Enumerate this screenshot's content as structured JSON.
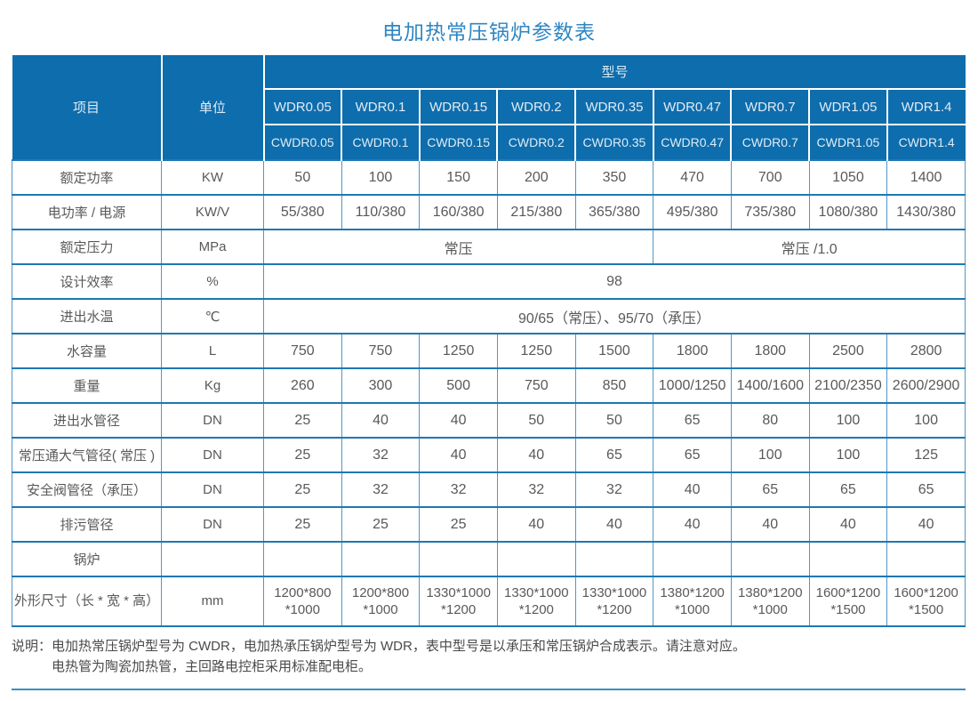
{
  "page_title": "电加热常压锅炉参数表",
  "colors": {
    "header_bg": "#0e6dac",
    "header_text": "#dfecf6",
    "title_text": "#2f86c3",
    "border_horizontal": "#1e78b2",
    "border_vertical": "#4f97c9",
    "cell_text": "#58595b",
    "note_text": "#4a4a4a"
  },
  "table": {
    "header": {
      "item_label": "项目",
      "unit_label": "单位",
      "model_label": "型号",
      "models_wdr": [
        "WDR0.05",
        "WDR0.1",
        "WDR0.15",
        "WDR0.2",
        "WDR0.35",
        "WDR0.47",
        "WDR0.7",
        "WDR1.05",
        "WDR1.4"
      ],
      "models_cwdr": [
        "CWDR0.05",
        "CWDR0.1",
        "CWDR0.15",
        "CWDR0.2",
        "CWDR0.35",
        "CWDR0.47",
        "CWDR0.7",
        "CWDR1.05",
        "CWDR1.4"
      ]
    },
    "rows": {
      "rated_power": {
        "label": "额定功率",
        "unit": "KW",
        "values": [
          "50",
          "100",
          "150",
          "200",
          "350",
          "470",
          "700",
          "1050",
          "1400"
        ]
      },
      "electric_power": {
        "label": "电功率 / 电源",
        "unit": "KW/V",
        "values": [
          "55/380",
          "110/380",
          "160/380",
          "215/380",
          "365/380",
          "495/380",
          "735/380",
          "1080/380",
          "1430/380"
        ]
      },
      "rated_pressure": {
        "label": "额定压力",
        "unit": "MPa",
        "value_left": "常压",
        "value_right": "常压 /1.0"
      },
      "design_efficiency": {
        "label": "设计效率",
        "unit": "%",
        "value": "98"
      },
      "water_temp": {
        "label": "进出水温",
        "unit": "℃",
        "value": "90/65（常压）、95/70（承压）"
      },
      "water_capacity": {
        "label": "水容量",
        "unit": "L",
        "values": [
          "750",
          "750",
          "1250",
          "1250",
          "1500",
          "1800",
          "1800",
          "2500",
          "2800"
        ]
      },
      "weight": {
        "label": "重量",
        "unit": "Kg",
        "values": [
          "260",
          "300",
          "500",
          "750",
          "850",
          "1000/1250",
          "1400/1600",
          "2100/2350",
          "2600/2900"
        ]
      },
      "water_pipe": {
        "label": "进出水管径",
        "unit": "DN",
        "values": [
          "25",
          "40",
          "40",
          "50",
          "50",
          "65",
          "80",
          "100",
          "100"
        ]
      },
      "atmos_pipe": {
        "label": "常压通大气管径( 常压 )",
        "unit": "DN",
        "values": [
          "25",
          "32",
          "40",
          "40",
          "65",
          "65",
          "100",
          "100",
          "125"
        ]
      },
      "safety_valve": {
        "label": "安全阀管径（承压）",
        "unit": "DN",
        "values": [
          "25",
          "32",
          "32",
          "32",
          "32",
          "40",
          "65",
          "65",
          "65"
        ]
      },
      "blowdown_pipe": {
        "label": "排污管径",
        "unit": "DN",
        "values": [
          "25",
          "25",
          "25",
          "40",
          "40",
          "40",
          "40",
          "40",
          "40"
        ]
      },
      "boiler": {
        "label": "锅炉",
        "unit": "",
        "values": [
          "",
          "",
          "",
          "",
          "",
          "",
          "",
          "",
          ""
        ]
      },
      "dimensions": {
        "label": "外形尺寸（长 * 宽 * 高）",
        "unit": "mm",
        "values": [
          "1200*800\n*1000",
          "1200*800\n*1000",
          "1330*1000\n*1200",
          "1330*1000\n*1200",
          "1330*1000\n*1200",
          "1380*1200\n*1000",
          "1380*1200\n*1000",
          "1600*1200\n*1500",
          "1600*1200\n*1500"
        ]
      }
    }
  },
  "note": {
    "label": "说明：",
    "line1": "电加热常压锅炉型号为 CWDR，电加热承压锅炉型号为 WDR，表中型号是以承压和常压锅炉合成表示。请注意对应。",
    "line2": "电热管为陶瓷加热管，主回路电控柜采用标准配电柜。"
  }
}
